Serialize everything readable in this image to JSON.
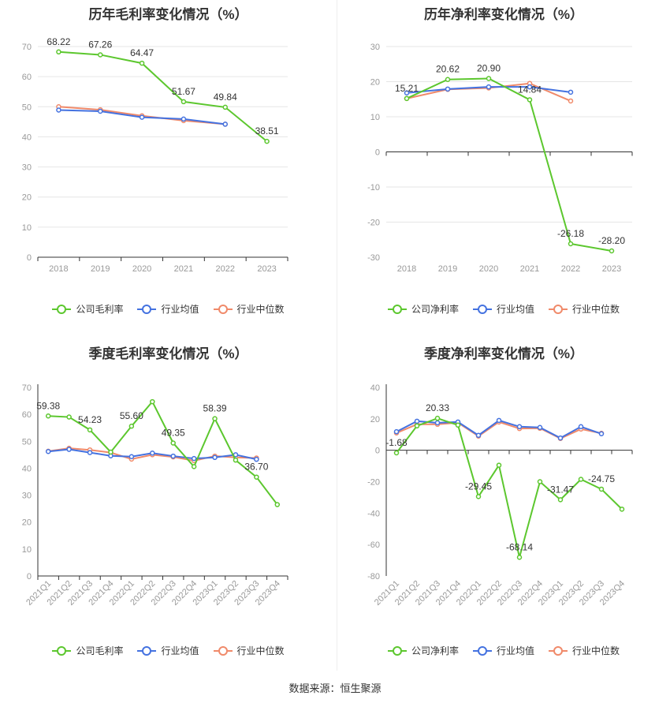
{
  "colors": {
    "company": "#5cc72e",
    "avg": "#4472e0",
    "median": "#f08a6a"
  },
  "source": "数据来源：恒生聚源",
  "chart_data": [
    {
      "type": "line",
      "title": "历年毛利率变化情况（%）",
      "categories": [
        "2018",
        "2019",
        "2020",
        "2021",
        "2022",
        "2023"
      ],
      "ylim": [
        0,
        70
      ],
      "yticks": [
        0,
        10,
        20,
        30,
        40,
        50,
        60,
        70
      ],
      "grid": true,
      "legend_position": "bottom",
      "series": [
        {
          "name": "公司毛利率",
          "key": "company",
          "values": [
            68.22,
            67.26,
            64.47,
            51.67,
            49.84,
            38.51
          ],
          "labels": [
            "68.22",
            "67.26",
            "64.47",
            "51.67",
            "49.84",
            "38.51"
          ]
        },
        {
          "name": "行业均值",
          "key": "avg",
          "values": [
            48.9,
            48.5,
            46.5,
            45.9,
            44.2,
            null
          ]
        },
        {
          "name": "行业中位数",
          "key": "median",
          "values": [
            50.0,
            49.0,
            47.0,
            45.4,
            44.2,
            null
          ]
        }
      ]
    },
    {
      "type": "line",
      "title": "历年净利率变化情况（%）",
      "categories": [
        "2018",
        "2019",
        "2020",
        "2021",
        "2022",
        "2023"
      ],
      "ylim": [
        -30,
        30
      ],
      "yticks": [
        -30,
        -20,
        -10,
        0,
        10,
        20,
        30
      ],
      "grid": true,
      "legend_position": "bottom",
      "series": [
        {
          "name": "公司净利率",
          "key": "company",
          "values": [
            15.21,
            20.62,
            20.9,
            14.84,
            -26.18,
            -28.2
          ],
          "labels": [
            "15.21",
            "20.62",
            "20.90",
            "14.84",
            "-26.18",
            "-28.20"
          ]
        },
        {
          "name": "行业均值",
          "key": "avg",
          "values": [
            16.8,
            17.9,
            18.5,
            18.5,
            17.0,
            null
          ]
        },
        {
          "name": "行业中位数",
          "key": "median",
          "values": [
            15.2,
            17.8,
            18.2,
            19.5,
            14.5,
            null
          ]
        }
      ]
    },
    {
      "type": "line",
      "title": "季度毛利率变化情况（%）",
      "categories": [
        "2021Q1",
        "2021Q2",
        "2021Q3",
        "2021Q4",
        "2022Q1",
        "2022Q2",
        "2022Q3",
        "2022Q4",
        "2023Q1",
        "2023Q2",
        "2023Q3",
        "2023Q4"
      ],
      "ylim": [
        0,
        70
      ],
      "yticks": [
        0,
        10,
        20,
        30,
        40,
        50,
        60,
        70
      ],
      "grid": false,
      "legend_position": "bottom",
      "series": [
        {
          "name": "公司毛利率",
          "key": "company",
          "values": [
            59.38,
            59.0,
            54.23,
            46.0,
            55.6,
            64.7,
            49.35,
            40.6,
            58.39,
            43.0,
            36.7,
            26.5
          ],
          "labels": [
            "59.38",
            "",
            "54.23",
            "",
            "55.60",
            "",
            "49.35",
            "",
            "58.39",
            "",
            "36.70",
            ""
          ]
        },
        {
          "name": "行业均值",
          "key": "avg",
          "values": [
            46.2,
            47.0,
            45.8,
            44.6,
            44.3,
            45.6,
            44.5,
            43.6,
            44.0,
            45.0,
            43.3,
            null
          ]
        },
        {
          "name": "行业中位数",
          "key": "median",
          "values": [
            46.3,
            47.4,
            46.8,
            45.8,
            43.4,
            45.0,
            44.2,
            42.8,
            44.5,
            44.0,
            43.8,
            null
          ]
        }
      ]
    },
    {
      "type": "line",
      "title": "季度净利率变化情况（%）",
      "categories": [
        "2021Q1",
        "2021Q2",
        "2021Q3",
        "2021Q4",
        "2022Q1",
        "2022Q2",
        "2022Q3",
        "2022Q4",
        "2023Q1",
        "2023Q2",
        "2023Q3",
        "2023Q4"
      ],
      "ylim": [
        -80,
        40
      ],
      "yticks": [
        -80,
        -60,
        -40,
        -20,
        0,
        20,
        40
      ],
      "grid": false,
      "legend_position": "bottom",
      "series": [
        {
          "name": "公司净利率",
          "key": "company",
          "values": [
            -1.68,
            15.5,
            20.33,
            16.0,
            -29.45,
            -9.5,
            -68.14,
            -20.0,
            -31.47,
            -18.5,
            -24.75,
            -37.5
          ],
          "labels": [
            "-1.68",
            "",
            "20.33",
            "",
            "-29.45",
            "",
            "-68.14",
            "",
            "-31.47",
            "",
            "-24.75",
            ""
          ]
        },
        {
          "name": "行业均值",
          "key": "avg",
          "values": [
            11.8,
            18.5,
            17.5,
            18.0,
            9.5,
            19.0,
            15.0,
            14.5,
            7.8,
            15.0,
            10.5,
            null
          ]
        },
        {
          "name": "行业中位数",
          "key": "median",
          "values": [
            11.0,
            16.5,
            16.5,
            17.5,
            9.0,
            18.0,
            13.8,
            14.0,
            7.5,
            13.5,
            10.8,
            null
          ]
        }
      ]
    }
  ]
}
